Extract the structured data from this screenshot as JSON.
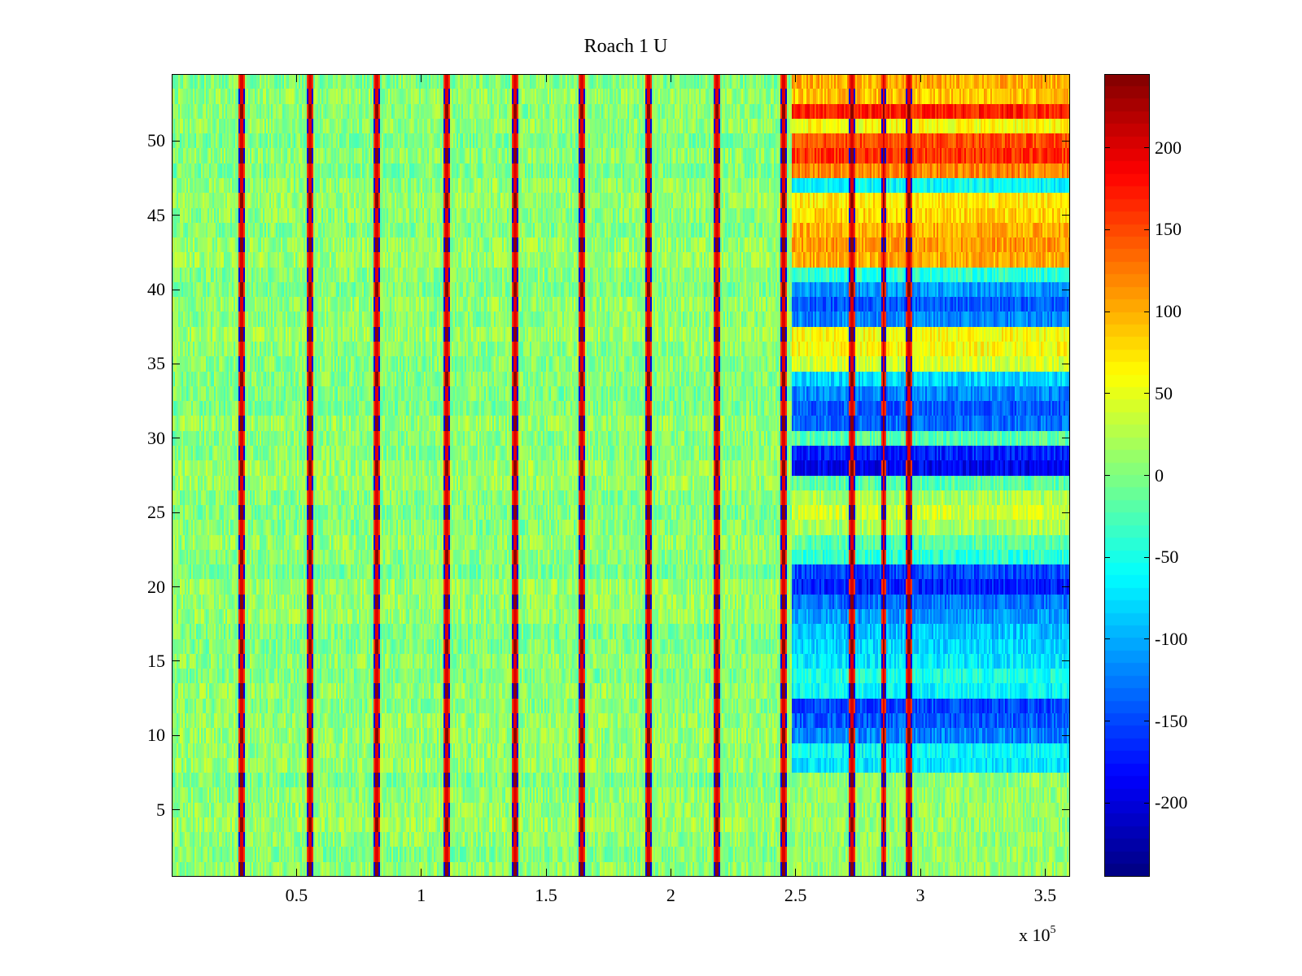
{
  "chart_data": {
    "type": "heatmap",
    "title": "Roach 1 U",
    "xlabel": "",
    "ylabel": "",
    "x_exponent_label": {
      "prefix": "x 10",
      "exponent": "5"
    },
    "xlim": [
      0,
      360000
    ],
    "ylim": [
      0.5,
      54.5
    ],
    "x_ticks": [
      {
        "value": 0.5,
        "label": "0.5"
      },
      {
        "value": 1,
        "label": "1"
      },
      {
        "value": 1.5,
        "label": "1.5"
      },
      {
        "value": 2,
        "label": "2"
      },
      {
        "value": 2.5,
        "label": "2.5"
      },
      {
        "value": 3,
        "label": "3"
      },
      {
        "value": 3.5,
        "label": "3.5"
      }
    ],
    "y_ticks": [
      {
        "value": 5,
        "label": "5"
      },
      {
        "value": 10,
        "label": "10"
      },
      {
        "value": 15,
        "label": "15"
      },
      {
        "value": 20,
        "label": "20"
      },
      {
        "value": 25,
        "label": "25"
      },
      {
        "value": 30,
        "label": "30"
      },
      {
        "value": 35,
        "label": "35"
      },
      {
        "value": 40,
        "label": "40"
      },
      {
        "value": 45,
        "label": "45"
      },
      {
        "value": 50,
        "label": "50"
      }
    ],
    "colorbar": {
      "colormap": "jet",
      "range": [
        -245,
        245
      ],
      "ticks": [
        {
          "value": 200,
          "label": "200"
        },
        {
          "value": 150,
          "label": "150"
        },
        {
          "value": 100,
          "label": "100"
        },
        {
          "value": 50,
          "label": "50"
        },
        {
          "value": 0,
          "label": "0"
        },
        {
          "value": -50,
          "label": "-50"
        },
        {
          "value": -100,
          "label": "-100"
        },
        {
          "value": -150,
          "label": "-150"
        },
        {
          "value": -200,
          "label": "-200"
        }
      ]
    },
    "rows": 54,
    "baseline_value": 5,
    "noise_amplitude": 20,
    "artifact_lines_x": [
      28000,
      55000,
      82000,
      110000,
      137000,
      164000,
      191000,
      218000,
      245000,
      272000,
      285000,
      295000
    ],
    "regime_change_x": 248000,
    "late_regime_row_means": {
      "1": 10,
      "2": 10,
      "3": 10,
      "4": 10,
      "5": 10,
      "6": 10,
      "7": 10,
      "8": -70,
      "9": -60,
      "10": -120,
      "11": -140,
      "12": -150,
      "13": -60,
      "14": -50,
      "15": -70,
      "16": -80,
      "17": -90,
      "18": -110,
      "19": -130,
      "20": -170,
      "21": -150,
      "22": -40,
      "23": -20,
      "24": 20,
      "25": 40,
      "26": 20,
      "27": -20,
      "28": -190,
      "29": -170,
      "30": -20,
      "31": -130,
      "32": -140,
      "33": -120,
      "34": -80,
      "35": 40,
      "36": 60,
      "37": 60,
      "38": -120,
      "39": -140,
      "40": -110,
      "41": -40,
      "42": 100,
      "43": 110,
      "44": 100,
      "45": 80,
      "46": 70,
      "47": -60,
      "48": 120,
      "49": 160,
      "50": 150,
      "51": 60,
      "52": 170,
      "53": 90,
      "54": 100
    }
  }
}
